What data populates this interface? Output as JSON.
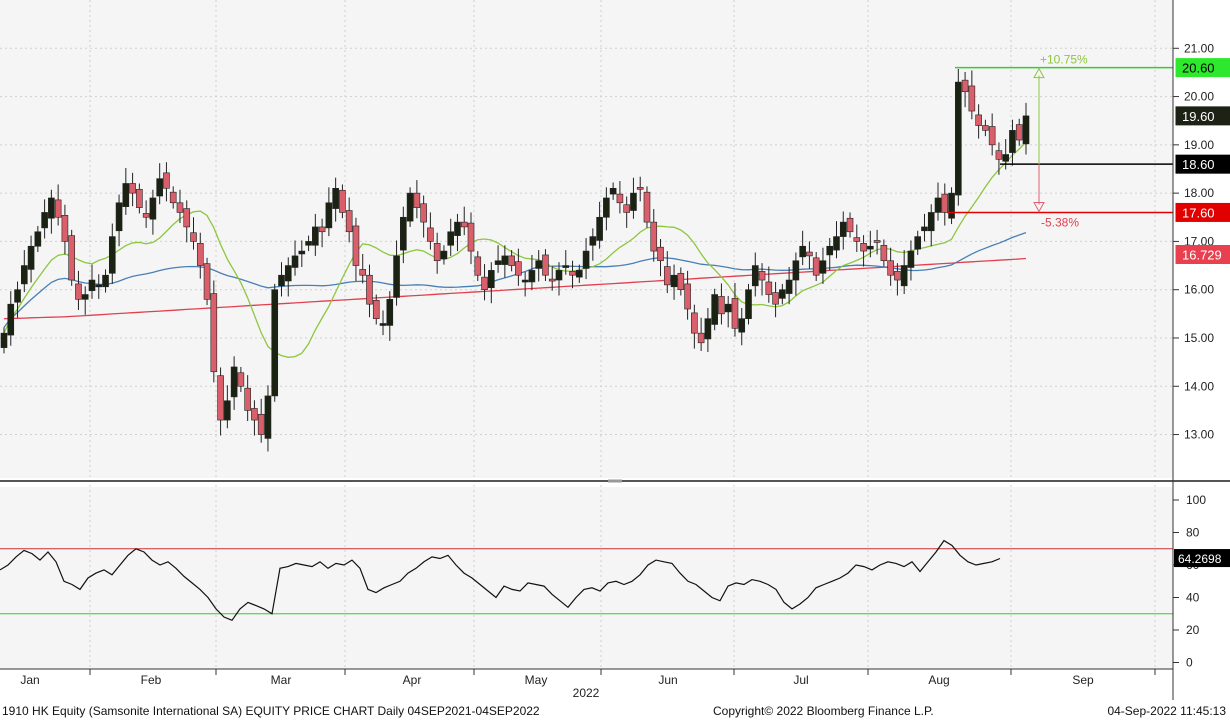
{
  "footer": {
    "left": "1910 HK Equity (Samsonite International SA) EQUITY PRICE CHART  Daily 04SEP2021-04SEP2022",
    "center": "Copyright© 2022 Bloomberg Finance L.P.",
    "right": "04-Sep-2022 11:45:13"
  },
  "chart_data": [
    {
      "type": "candlestick",
      "title": "",
      "year_label": "2022",
      "x_ticks": [
        "Jan",
        "Feb",
        "Mar",
        "Apr",
        "May",
        "Jun",
        "Jul",
        "Aug",
        "Sep"
      ],
      "y_ticks": [
        "13.00",
        "14.00",
        "15.00",
        "16.00",
        "17.00",
        "18.00",
        "19.00",
        "20.00",
        "21.00"
      ],
      "ylim": [
        12.1,
        22.0
      ],
      "grid": true,
      "last_price_label": "19.60",
      "ma_label": "16.729",
      "annotations": {
        "upper_level": "20.60",
        "mid_level": "18.60",
        "lower_level": "17.60",
        "up_pct": "+10.75%",
        "down_pct": "-5.38%"
      },
      "colors": {
        "up": "#d95f6b",
        "down": "#1a2212",
        "ma_fast": "#8dc63f",
        "ma_mid": "#4a7fb5",
        "ma_slow": "#e0404f",
        "upper": "#33cc33",
        "lower": "#e00000"
      },
      "ohlc_close": [
        15.1,
        15.7,
        16.0,
        16.5,
        16.9,
        17.2,
        17.6,
        17.9,
        17.5,
        17.0,
        16.2,
        15.8,
        15.9,
        16.2,
        16.1,
        16.3,
        17.1,
        17.8,
        18.2,
        18.0,
        17.7,
        17.5,
        17.9,
        18.3,
        18.1,
        17.8,
        17.6,
        17.3,
        17.0,
        16.5,
        15.8,
        14.3,
        13.3,
        13.7,
        14.4,
        14.0,
        13.5,
        13.3,
        13.0,
        13.8,
        16.0,
        16.3,
        16.5,
        16.7,
        16.8,
        17.0,
        17.3,
        17.2,
        17.8,
        18.1,
        17.6,
        17.2,
        16.5,
        16.3,
        15.7,
        15.4,
        15.3,
        15.8,
        16.7,
        17.5,
        18.0,
        17.7,
        17.4,
        17.0,
        16.6,
        16.8,
        17.2,
        17.4,
        17.3,
        16.8,
        16.3,
        16.0,
        16.4,
        16.6,
        16.7,
        16.5,
        16.3,
        16.2,
        16.4,
        16.6,
        16.3,
        16.2,
        16.4,
        16.5,
        16.3,
        16.4,
        16.8,
        17.1,
        17.5,
        17.9,
        18.1,
        17.8,
        17.6,
        18.0,
        18.1,
        17.4,
        16.8,
        16.6,
        16.1,
        16.3,
        16.0,
        15.6,
        15.1,
        14.9,
        15.4,
        15.9,
        15.5,
        15.7,
        15.2,
        15.4,
        16.0,
        16.5,
        16.2,
        15.9,
        15.7,
        16.0,
        16.2,
        16.6,
        16.9,
        16.7,
        16.3,
        16.6,
        16.9,
        17.1,
        17.4,
        17.2,
        17.0,
        16.8,
        16.9,
        17.0,
        16.6,
        16.3,
        16.2,
        16.5,
        16.8,
        17.1,
        17.3,
        17.6,
        17.9,
        17.6,
        18.0,
        20.3,
        20.1,
        19.7,
        19.4,
        19.3,
        19.0,
        18.7,
        18.8,
        19.3,
        19.1,
        19.6
      ],
      "rsi_panel": {
        "y_ticks": [
          "0",
          "20",
          "40",
          "60",
          "80",
          "100"
        ],
        "ylim": [
          -4,
          108
        ],
        "overbought": 70,
        "oversold": 30,
        "last_value_label": "64.2698",
        "values": [
          57,
          60,
          65,
          69,
          67,
          63,
          68,
          62,
          50,
          48,
          45,
          52,
          55,
          57,
          54,
          60,
          66,
          70,
          68,
          63,
          60,
          62,
          58,
          53,
          49,
          45,
          40,
          33,
          28,
          26,
          33,
          37,
          35,
          33,
          30,
          58,
          59,
          61,
          60,
          59,
          62,
          58,
          61,
          60,
          63,
          58,
          45,
          43,
          46,
          48,
          50,
          55,
          58,
          62,
          65,
          64,
          66,
          60,
          55,
          52,
          48,
          44,
          40,
          47,
          45,
          44,
          49,
          48,
          47,
          42,
          38,
          34,
          40,
          45,
          46,
          44,
          49,
          50,
          48,
          50,
          54,
          60,
          63,
          62,
          61,
          55,
          50,
          48,
          44,
          40,
          38,
          47,
          49,
          48,
          51,
          50,
          48,
          45,
          37,
          33,
          36,
          40,
          46,
          48,
          50,
          52,
          55,
          60,
          59,
          57,
          60,
          62,
          61,
          59,
          62,
          56,
          62,
          68,
          75,
          72,
          66,
          62,
          60,
          61,
          62,
          64
        ]
      }
    }
  ]
}
